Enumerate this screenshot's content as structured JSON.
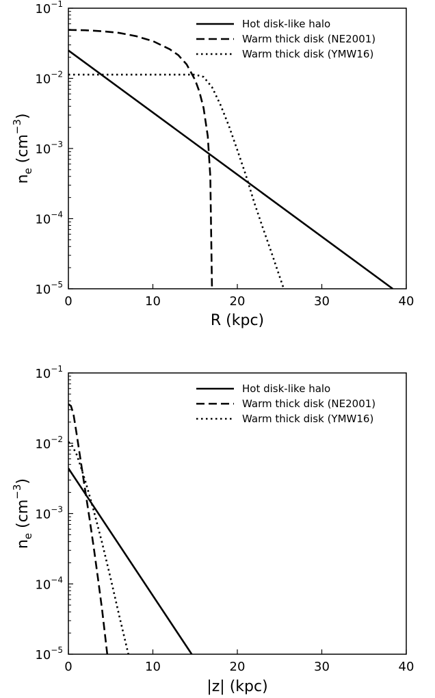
{
  "chart_data": [
    {
      "type": "line",
      "xlabel": "R (kpc)",
      "ylabel": "n_e (cm^-3)",
      "xlim": [
        0,
        40
      ],
      "ylim": [
        1e-05,
        0.1
      ],
      "yscale": "log",
      "xticks": [
        "0",
        "10",
        "20",
        "30",
        "40"
      ],
      "yticks": [
        {
          "base": "10",
          "exp": "−5"
        },
        {
          "base": "10",
          "exp": "−4"
        },
        {
          "base": "10",
          "exp": "−3"
        },
        {
          "base": "10",
          "exp": "−2"
        },
        {
          "base": "10",
          "exp": "−1"
        }
      ],
      "grid": false,
      "legend_position": "top-right",
      "series": [
        {
          "name": "Hot disk-like halo",
          "style": "solid",
          "x": [
            0,
            38.4
          ],
          "y": [
            0.025,
            1e-05
          ]
        },
        {
          "name": "Warm thick disk (NE2001)",
          "style": "dashed",
          "x": [
            0,
            2,
            4,
            6,
            8,
            10,
            12,
            13,
            14,
            15,
            15.5,
            16,
            16.5,
            16.8,
            17.0
          ],
          "y": [
            0.049,
            0.0485,
            0.047,
            0.0445,
            0.04,
            0.034,
            0.026,
            0.0215,
            0.0158,
            0.0095,
            0.0065,
            0.0038,
            0.0015,
            0.0004,
            1e-05
          ]
        },
        {
          "name": "Warm thick disk (YMW16)",
          "style": "dotted",
          "x": [
            0,
            15,
            16,
            17,
            18,
            19,
            20,
            21,
            22,
            23,
            24,
            25,
            25.5
          ],
          "y": [
            0.0113,
            0.0113,
            0.0105,
            0.0075,
            0.0042,
            0.0021,
            0.00095,
            0.00042,
            0.00017,
            7.5e-05,
            3.4e-05,
            1.5e-05,
            1e-05
          ]
        }
      ]
    },
    {
      "type": "line",
      "xlabel": "|z| (kpc)",
      "ylabel": "n_e (cm^-3)",
      "xlim": [
        0,
        40
      ],
      "ylim": [
        1e-05,
        0.1
      ],
      "yscale": "log",
      "xticks": [
        "0",
        "10",
        "20",
        "30",
        "40"
      ],
      "yticks": [
        {
          "base": "10",
          "exp": "−5"
        },
        {
          "base": "10",
          "exp": "−4"
        },
        {
          "base": "10",
          "exp": "−3"
        },
        {
          "base": "10",
          "exp": "−2"
        },
        {
          "base": "10",
          "exp": "−1"
        }
      ],
      "grid": false,
      "legend_position": "top-right",
      "series": [
        {
          "name": "Hot disk-like halo",
          "style": "solid",
          "x": [
            0,
            14.6
          ],
          "y": [
            0.0044,
            1e-05
          ]
        },
        {
          "name": "Warm thick disk (NE2001)",
          "style": "dashed",
          "x": [
            0,
            0.3,
            0.6,
            1.0,
            1.5,
            2.0,
            2.5,
            3.0,
            3.5,
            4.0,
            4.6
          ],
          "y": [
            0.036,
            0.034,
            0.026,
            0.013,
            0.0052,
            0.0021,
            0.00085,
            0.00033,
            0.00012,
            4.2e-05,
            1e-05
          ]
        },
        {
          "name": "Warm thick disk (YMW16)",
          "style": "dotted",
          "x": [
            0,
            0.5,
            1.0,
            1.5,
            2.0,
            2.5,
            3.0,
            4.0,
            5.0,
            6.0,
            7.1
          ],
          "y": [
            0.0105,
            0.009,
            0.0068,
            0.0045,
            0.0029,
            0.0018,
            0.0011,
            0.00038,
            0.00012,
            3.6e-05,
            1e-05
          ]
        }
      ]
    }
  ]
}
